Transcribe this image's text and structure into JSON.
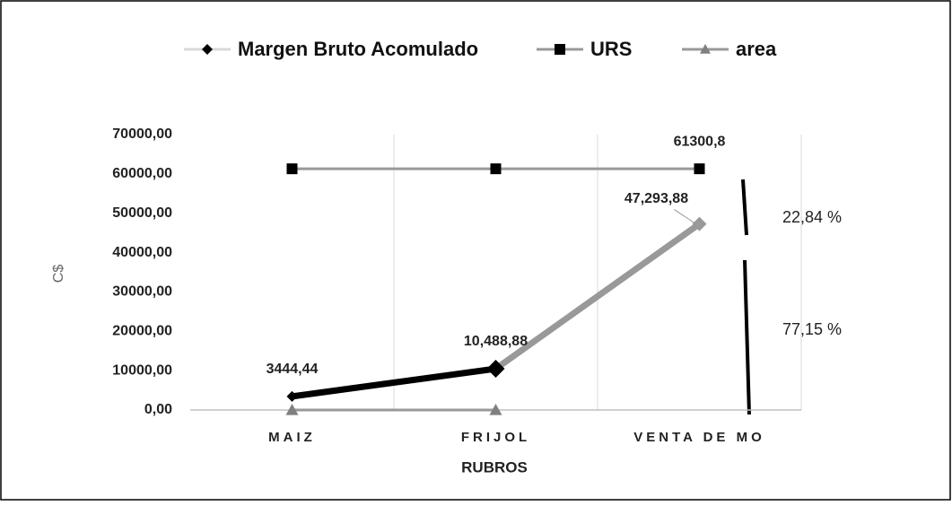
{
  "chart_data": {
    "type": "line",
    "categories": [
      "MAIZ",
      "FRIJOL",
      "VENTA DE MO"
    ],
    "series": [
      {
        "name": "Margen Bruto Acomulado",
        "color": "#999999",
        "segment_colors": [
          "#000000",
          "#999999"
        ],
        "marker": "diamond",
        "marker_colors": [
          "#000000",
          "#000000",
          "#999999"
        ],
        "values": [
          3444.44,
          10488.88,
          47293.88
        ],
        "value_labels": [
          "3444,44",
          "10,488,88",
          "47,293,88"
        ]
      },
      {
        "name": "URS",
        "color": "#999999",
        "marker": "square",
        "marker_colors": [
          "#000000",
          "#000000",
          "#000000"
        ],
        "values": [
          61300.8,
          61300.8,
          61300.8
        ],
        "value_labels": [
          null,
          null,
          "61300,8"
        ]
      },
      {
        "name": "area",
        "color": "#999999",
        "marker": "triangle",
        "marker_colors": [
          "#808080",
          "#808080",
          "#808080"
        ],
        "values": [
          0,
          0,
          null
        ]
      }
    ],
    "xlabel": "RUBROS",
    "ylabel": "C$",
    "ylim": [
      0,
      70000
    ],
    "yticks": [
      {
        "value": 0,
        "label": "0,00"
      },
      {
        "value": 10000,
        "label": "10000,00"
      },
      {
        "value": 20000,
        "label": "20000,00"
      },
      {
        "value": 30000,
        "label": "30000,00"
      },
      {
        "value": 40000,
        "label": "40000,00"
      },
      {
        "value": 50000,
        "label": "50000,00"
      },
      {
        "value": 60000,
        "label": "60000,00"
      },
      {
        "value": 70000,
        "label": "70000,00"
      }
    ],
    "annotations": [
      "22,84 %",
      "77,15 %"
    ],
    "grid": "x",
    "legend": "top"
  }
}
